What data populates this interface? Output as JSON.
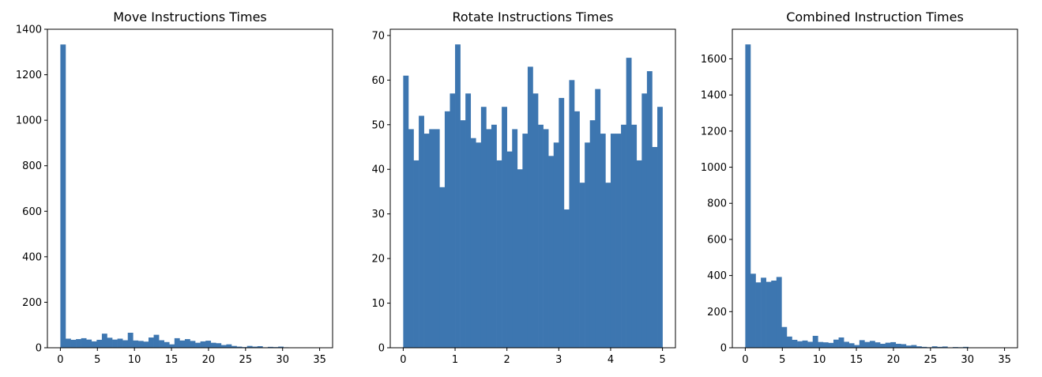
{
  "figure": {
    "background": "#ffffff",
    "bar_color": "#3d76b0"
  },
  "chart_data": [
    {
      "type": "bar",
      "title": "Move Instructions Times",
      "xlabel": "",
      "ylabel": "",
      "xlim": [
        -1.75,
        36.75
      ],
      "ylim": [
        0,
        1400
      ],
      "xticks": [
        0,
        5,
        10,
        15,
        20,
        25,
        30,
        35
      ],
      "yticks": [
        0,
        200,
        400,
        600,
        800,
        1000,
        1200,
        1400
      ],
      "bin_start": 0,
      "bin_width": 0.7,
      "values": [
        1333,
        40,
        35,
        38,
        42,
        36,
        28,
        35,
        62,
        44,
        36,
        40,
        33,
        66,
        32,
        30,
        27,
        45,
        57,
        33,
        25,
        15,
        42,
        32,
        38,
        30,
        22,
        28,
        31,
        22,
        20,
        12,
        15,
        8,
        5,
        3,
        8,
        5,
        7,
        2,
        4,
        3,
        5,
        2,
        1,
        1,
        1,
        1,
        1,
        1
      ],
      "grid": false,
      "legend": false
    },
    {
      "type": "bar",
      "title": "Rotate Instructions Times",
      "xlabel": "",
      "ylabel": "",
      "xlim": [
        -0.25,
        5.25
      ],
      "ylim": [
        0,
        71.4
      ],
      "xticks": [
        0,
        1,
        2,
        3,
        4,
        5
      ],
      "yticks": [
        0,
        10,
        20,
        30,
        40,
        50,
        60,
        70
      ],
      "bin_start": 0,
      "bin_width": 0.1,
      "values": [
        61,
        49,
        42,
        52,
        48,
        49,
        49,
        36,
        53,
        57,
        68,
        51,
        57,
        47,
        46,
        54,
        49,
        50,
        42,
        54,
        44,
        49,
        40,
        48,
        63,
        57,
        50,
        49,
        43,
        46,
        56,
        31,
        60,
        53,
        37,
        46,
        51,
        58,
        48,
        37,
        48,
        48,
        50,
        65,
        50,
        42,
        57,
        62,
        45,
        54
      ],
      "grid": false,
      "legend": false
    },
    {
      "type": "bar",
      "title": "Combined Instruction Times",
      "xlabel": "",
      "ylabel": "",
      "xlim": [
        -1.75,
        36.75
      ],
      "ylim": [
        0,
        1764
      ],
      "xticks": [
        0,
        5,
        10,
        15,
        20,
        25,
        30,
        35
      ],
      "yticks": [
        0,
        200,
        400,
        600,
        800,
        1000,
        1200,
        1400,
        1600
      ],
      "bin_start": 0,
      "bin_width": 0.7,
      "values": [
        1680,
        410,
        362,
        388,
        365,
        372,
        392,
        115,
        62,
        44,
        36,
        40,
        33,
        66,
        32,
        30,
        27,
        45,
        57,
        33,
        25,
        15,
        42,
        32,
        38,
        30,
        22,
        28,
        31,
        22,
        20,
        12,
        15,
        8,
        5,
        3,
        8,
        5,
        7,
        2,
        4,
        3,
        5,
        2,
        1,
        1,
        1,
        1,
        1,
        1
      ],
      "grid": false,
      "legend": false
    }
  ]
}
